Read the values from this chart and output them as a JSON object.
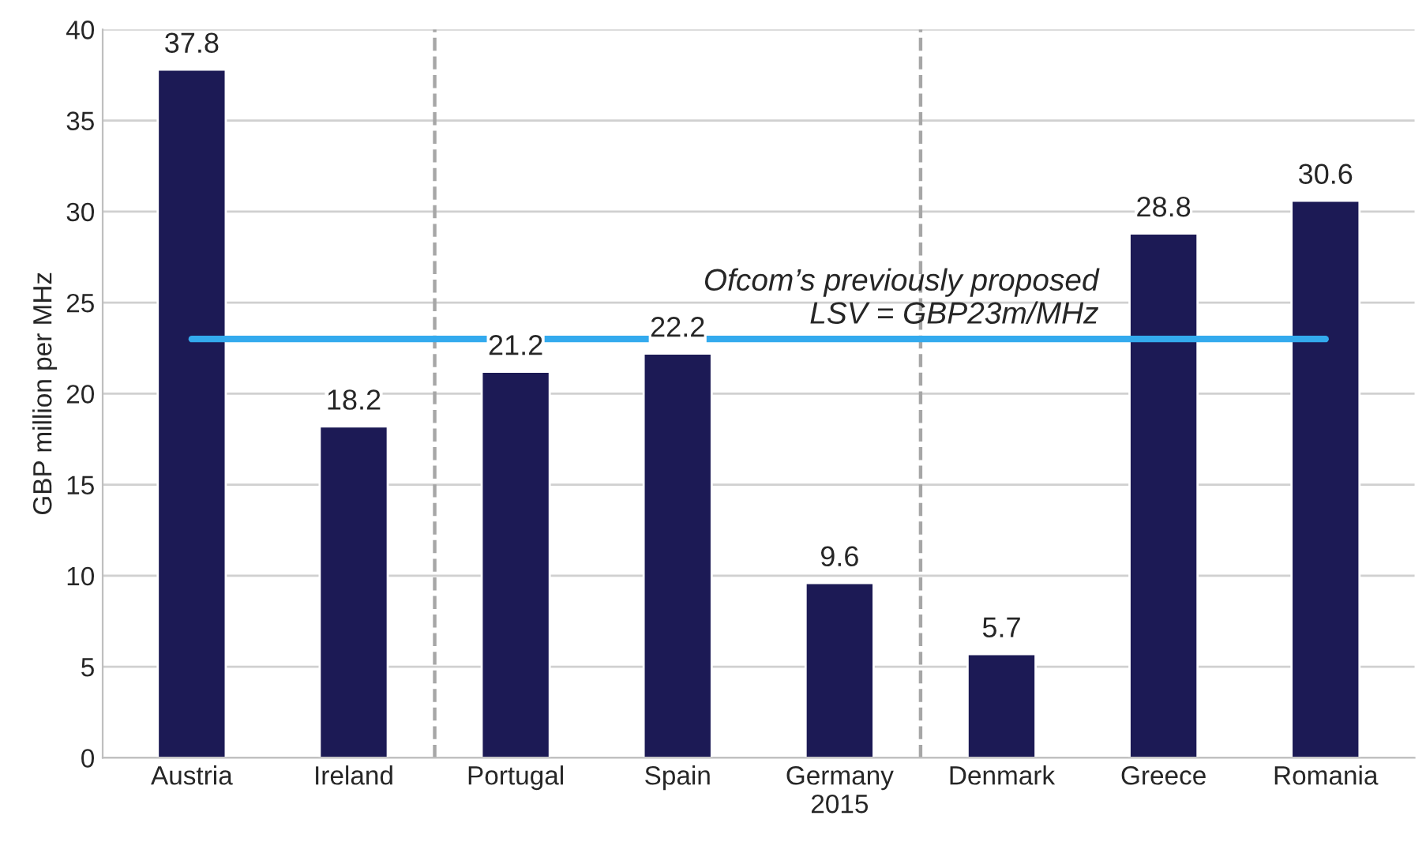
{
  "chart_data": {
    "type": "bar",
    "ylabel": "GBP million per MHz",
    "categories": [
      "Austria",
      "Ireland",
      "Portugal",
      "Spain",
      "Germany\n2015",
      "Denmark",
      "Greece",
      "Romania"
    ],
    "values": [
      37.8,
      18.2,
      21.2,
      22.2,
      9.6,
      5.7,
      28.8,
      30.6
    ],
    "color": "#1c1a55",
    "ylim": [
      0,
      40
    ],
    "yticks": [
      0,
      5,
      10,
      15,
      20,
      25,
      30,
      35,
      40
    ],
    "data_labels": true,
    "grid": "y",
    "legend": false,
    "ref_lines": [
      {
        "axis": "y",
        "value": 23,
        "label": "Ofcom’s previously proposed\nLSV = GBP23m/MHz",
        "color": "#33aaee",
        "line_style": "solid"
      }
    ]
  }
}
